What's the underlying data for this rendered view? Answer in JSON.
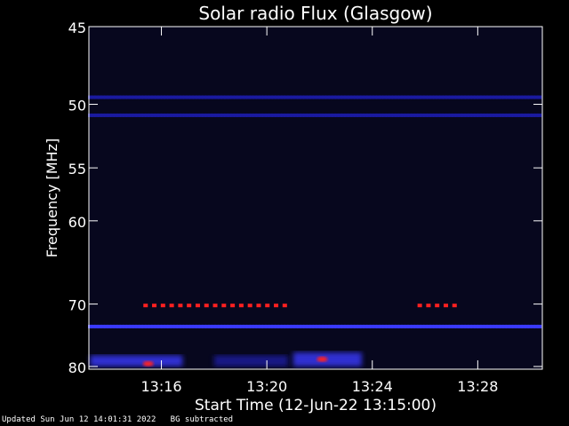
{
  "chart_data": {
    "type": "heatmap",
    "title": "Solar radio Flux (Glasgow)",
    "xlabel": "Start Time (12-Jun-22 13:15:00)",
    "ylabel": "Frequency [MHz]",
    "x_range_minutes": [
      13.25,
      30.45
    ],
    "y_range_mhz": [
      45,
      80.5
    ],
    "x_ticks": [
      {
        "label": "13:16",
        "minute": 16
      },
      {
        "label": "13:20",
        "minute": 20
      },
      {
        "label": "13:24",
        "minute": 24
      },
      {
        "label": "13:28",
        "minute": 28
      }
    ],
    "y_ticks": [
      {
        "label": "45",
        "mhz": 45
      },
      {
        "label": "50",
        "mhz": 50
      },
      {
        "label": "55",
        "mhz": 55
      },
      {
        "label": "60",
        "mhz": 60
      },
      {
        "label": "70",
        "mhz": 70
      },
      {
        "label": "80",
        "mhz": 80
      }
    ],
    "colors": {
      "background": "#0a0a2a",
      "low": "#1a1aa0",
      "mid": "#3a3aff",
      "high": "#ff2020",
      "axes": "#ffffff"
    },
    "features": [
      {
        "type": "dotted_band",
        "mhz": 49.5,
        "minute_start": 13.3,
        "minute_end": 30.4,
        "intensity": "low"
      },
      {
        "type": "dotted_band",
        "mhz": 50.8,
        "minute_start": 13.3,
        "minute_end": 30.4,
        "intensity": "low"
      },
      {
        "type": "dotted_band",
        "mhz": 70.2,
        "minute_start": 15.4,
        "minute_end": 20.7,
        "intensity": "high"
      },
      {
        "type": "dotted_band",
        "mhz": 70.2,
        "minute_start": 25.8,
        "minute_end": 27.4,
        "intensity": "high"
      },
      {
        "type": "dotted_band",
        "mhz": 73.3,
        "minute_start": 13.3,
        "minute_end": 30.4,
        "intensity": "mid"
      },
      {
        "type": "burst",
        "mhz_start": 78.0,
        "mhz_end": 80.0,
        "minute_start": 13.3,
        "minute_end": 16.8,
        "intensity": "mid"
      },
      {
        "type": "burst",
        "mhz_start": 78.0,
        "mhz_end": 80.0,
        "minute_start": 18.0,
        "minute_end": 20.8,
        "intensity": "low"
      },
      {
        "type": "burst",
        "mhz_start": 77.5,
        "mhz_end": 80.0,
        "minute_start": 21.0,
        "minute_end": 23.6,
        "intensity": "mid"
      },
      {
        "type": "spot",
        "mhz": 79.5,
        "minute": 15.5,
        "intensity": "high"
      },
      {
        "type": "spot",
        "mhz": 78.7,
        "minute": 22.1,
        "intensity": "high"
      }
    ]
  },
  "footer": {
    "updated": "Updated Sun Jun 12 14:01:31 2022",
    "note": "BG subtracted"
  }
}
